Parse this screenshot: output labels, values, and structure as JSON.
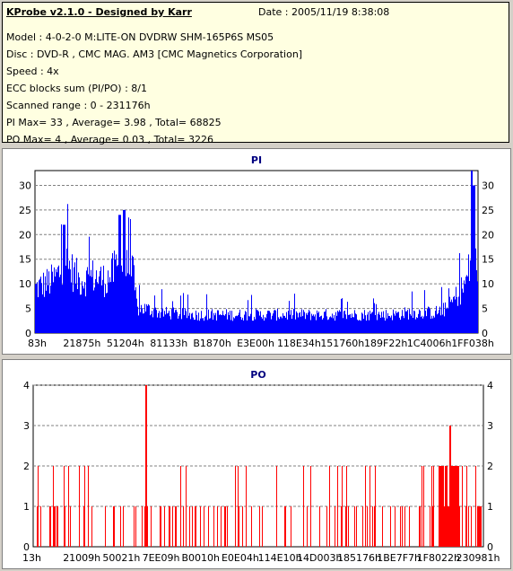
{
  "header": {
    "title": "KProbe v2.1.0 - Designed by Karr",
    "date": "Date : 2005/11/19 8:38:08",
    "lines": [
      "Model : 4-0-2-0 M:LITE-ON DVDRW SHM-165P6S MS05",
      "Disc : DVD-R , CMC MAG. AM3 [CMC Magnetics Corporation]",
      "Speed : 4x",
      "ECC blocks sum (PI/PO) : 8/1",
      "Scanned range : 0 - 231176h",
      "PI Max= 33 , Average= 3.98 , Total= 68825",
      "PO Max= 4 , Average= 0.03 , Total= 3226"
    ]
  },
  "colors": {
    "pi": "#0000ff",
    "po": "#ff0000",
    "title": "#000080"
  },
  "chart_data": [
    {
      "type": "area",
      "title": "PI",
      "ylim": [
        0,
        33
      ],
      "yticks": [
        0,
        5,
        10,
        15,
        20,
        25,
        30
      ],
      "xticks": [
        "83h",
        "21875h",
        "51204h",
        "81133h",
        "B1870h",
        "E3E00h",
        "118E34h",
        "151760h",
        "189F22h",
        "1C4006h",
        "1FF038h"
      ],
      "profile_x": [
        0,
        0.04,
        0.07,
        0.1,
        0.13,
        0.16,
        0.19,
        0.22,
        0.23,
        0.25,
        0.28,
        0.35,
        0.45,
        0.55,
        0.65,
        0.75,
        0.8,
        0.85,
        0.9,
        0.93,
        0.95,
        0.97,
        0.98,
        0.99,
        1.0
      ],
      "profile_y": [
        11,
        13,
        17,
        13,
        14,
        13,
        17,
        15,
        6,
        6,
        5,
        4.5,
        4.5,
        4.5,
        4.5,
        4.5,
        4.5,
        5,
        5,
        6,
        9,
        12,
        16,
        22,
        16
      ],
      "peaks": [
        [
          0.065,
          22
        ],
        [
          0.19,
          24
        ],
        [
          0.2,
          25
        ],
        [
          0.985,
          33
        ],
        [
          0.99,
          30
        ]
      ]
    },
    {
      "type": "bar",
      "title": "PO",
      "ylim": [
        0,
        4
      ],
      "yticks": [
        0,
        1,
        2,
        3,
        4
      ],
      "xticks": [
        "13h",
        "21009h",
        "50021h",
        "7EE09h",
        "B0010h",
        "E0E04h",
        "114E10h",
        "14D003h",
        "185176h",
        "1BE7F7h",
        "1F8022h",
        "230981h"
      ],
      "peaks": [
        [
          0.25,
          4
        ],
        [
          0.925,
          3
        ]
      ],
      "dense_ranges": [
        [
          0.9,
          0.945,
          2
        ]
      ]
    }
  ]
}
